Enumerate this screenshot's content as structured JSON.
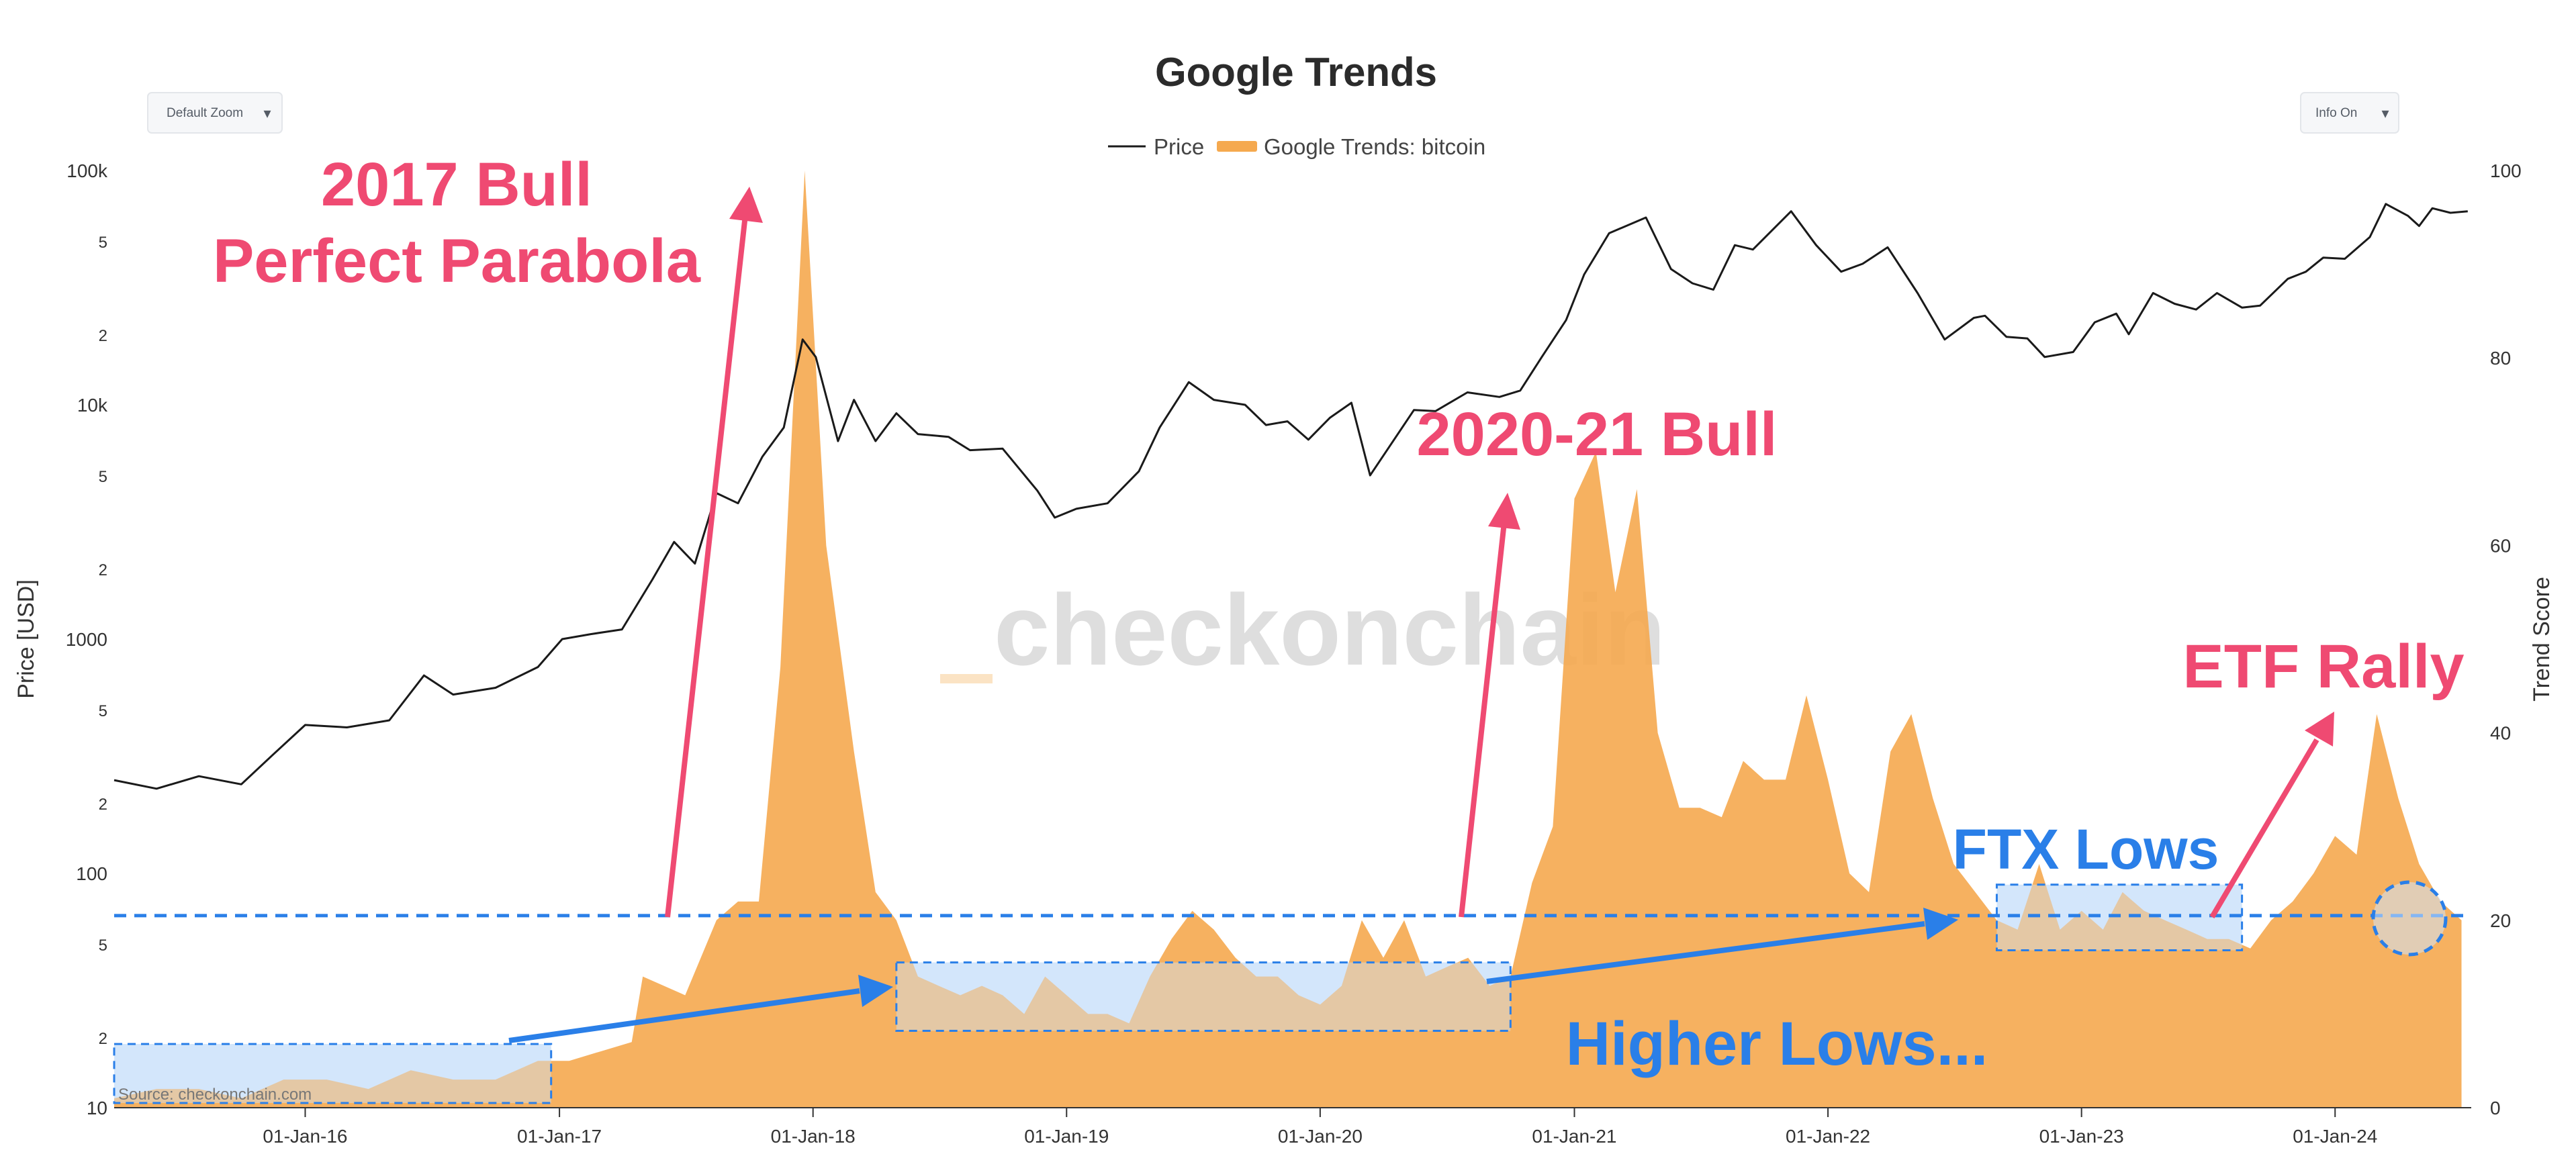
{
  "controls": {
    "zoom_label": "Default Zoom",
    "info_label": "Info On",
    "dropdown_glyph": "▾"
  },
  "colors": {
    "price": "#1a1a1a",
    "trends": "#f5a94f",
    "annotation_red": "#ef4a72",
    "annotation_blue": "#2a7fe8",
    "box_fill": "#d3e6fb"
  },
  "watermark": {
    "dash": "_",
    "text": "checkonchain"
  },
  "source": "Source: checkonchain.com",
  "annotations": {
    "bull_2017_line1": "2017 Bull",
    "bull_2017_line2": "Perfect Parabola",
    "bull_2020": "2020-21 Bull",
    "etf": "ETF Rally",
    "ftx": "FTX Lows",
    "higher_lows": "Higher Lows..."
  },
  "chart_data": {
    "type": "area",
    "title": "Google Trends",
    "legend": [
      {
        "name": "Price",
        "kind": "line"
      },
      {
        "name": "Google Trends: bitcoin",
        "kind": "area"
      }
    ],
    "legend_position": "top-center",
    "grid": false,
    "x_range": [
      "2015-04-01",
      "2024-07-15"
    ],
    "x_ticks": [
      "01-Jan-16",
      "01-Jan-17",
      "01-Jan-18",
      "01-Jan-19",
      "01-Jan-20",
      "01-Jan-21",
      "01-Jan-22",
      "01-Jan-23",
      "01-Jan-24"
    ],
    "y_left": {
      "label": "Price [USD]",
      "scale": "log",
      "range": [
        10,
        100000
      ],
      "ticks": [
        {
          "v": 10,
          "t": "10"
        },
        {
          "v": 20,
          "t": "2"
        },
        {
          "v": 50,
          "t": "5"
        },
        {
          "v": 100,
          "t": "100"
        },
        {
          "v": 200,
          "t": "2"
        },
        {
          "v": 500,
          "t": "5"
        },
        {
          "v": 1000,
          "t": "1000"
        },
        {
          "v": 2000,
          "t": "2"
        },
        {
          "v": 5000,
          "t": "5"
        },
        {
          "v": 10000,
          "t": "10k"
        },
        {
          "v": 20000,
          "t": "2"
        },
        {
          "v": 50000,
          "t": "5"
        },
        {
          "v": 100000,
          "t": "100k"
        }
      ]
    },
    "y_right": {
      "label": "Trend Score",
      "scale": "linear",
      "range": [
        0,
        100
      ],
      "ticks": [
        0,
        20,
        40,
        60,
        80,
        100
      ]
    },
    "reference_line": {
      "y_right": 20.5,
      "style": "dashed"
    },
    "series": [
      {
        "name": "Google Trends: bitcoin",
        "axis": "right",
        "points": [
          [
            "2015-04-01",
            1
          ],
          [
            "2015-06-01",
            2
          ],
          [
            "2015-08-01",
            2
          ],
          [
            "2015-10-01",
            1
          ],
          [
            "2015-12-01",
            3
          ],
          [
            "2016-02-01",
            3
          ],
          [
            "2016-04-01",
            2
          ],
          [
            "2016-06-01",
            4
          ],
          [
            "2016-08-01",
            3
          ],
          [
            "2016-10-01",
            3
          ],
          [
            "2016-12-01",
            5
          ],
          [
            "2017-01-15",
            5
          ],
          [
            "2017-03-01",
            6
          ],
          [
            "2017-04-15",
            7
          ],
          [
            "2017-05-01",
            14
          ],
          [
            "2017-07-01",
            12
          ],
          [
            "2017-08-15",
            20
          ],
          [
            "2017-09-15",
            22
          ],
          [
            "2017-10-15",
            22
          ],
          [
            "2017-11-15",
            47
          ],
          [
            "2017-12-20",
            100
          ],
          [
            "2018-01-20",
            60
          ],
          [
            "2018-03-01",
            38
          ],
          [
            "2018-04-01",
            23
          ],
          [
            "2018-05-01",
            20
          ],
          [
            "2018-06-01",
            14
          ],
          [
            "2018-07-01",
            13
          ],
          [
            "2018-08-01",
            12
          ],
          [
            "2018-09-01",
            13
          ],
          [
            "2018-10-01",
            12
          ],
          [
            "2018-11-01",
            10
          ],
          [
            "2018-12-01",
            14
          ],
          [
            "2019-01-01",
            12
          ],
          [
            "2019-02-01",
            10
          ],
          [
            "2019-03-01",
            10
          ],
          [
            "2019-04-01",
            9
          ],
          [
            "2019-05-01",
            14
          ],
          [
            "2019-06-01",
            18
          ],
          [
            "2019-07-01",
            21
          ],
          [
            "2019-08-01",
            19
          ],
          [
            "2019-09-01",
            16
          ],
          [
            "2019-10-01",
            14
          ],
          [
            "2019-11-01",
            14
          ],
          [
            "2019-12-01",
            12
          ],
          [
            "2020-01-01",
            11
          ],
          [
            "2020-02-01",
            13
          ],
          [
            "2020-03-01",
            20
          ],
          [
            "2020-04-01",
            16
          ],
          [
            "2020-05-01",
            20
          ],
          [
            "2020-06-01",
            14
          ],
          [
            "2020-07-01",
            15
          ],
          [
            "2020-08-01",
            16
          ],
          [
            "2020-09-01",
            13
          ],
          [
            "2020-10-01",
            14
          ],
          [
            "2020-11-01",
            24
          ],
          [
            "2020-12-01",
            30
          ],
          [
            "2021-01-01",
            65
          ],
          [
            "2021-02-01",
            70
          ],
          [
            "2021-03-01",
            55
          ],
          [
            "2021-04-01",
            66
          ],
          [
            "2021-05-01",
            40
          ],
          [
            "2021-06-01",
            32
          ],
          [
            "2021-07-01",
            32
          ],
          [
            "2021-08-01",
            31
          ],
          [
            "2021-09-01",
            37
          ],
          [
            "2021-10-01",
            35
          ],
          [
            "2021-11-01",
            35
          ],
          [
            "2021-12-01",
            44
          ],
          [
            "2022-01-01",
            35
          ],
          [
            "2022-02-01",
            25
          ],
          [
            "2022-03-01",
            23
          ],
          [
            "2022-04-01",
            38
          ],
          [
            "2022-05-01",
            42
          ],
          [
            "2022-06-01",
            33
          ],
          [
            "2022-07-01",
            26
          ],
          [
            "2022-08-01",
            23
          ],
          [
            "2022-09-01",
            20
          ],
          [
            "2022-10-01",
            19
          ],
          [
            "2022-11-01",
            26
          ],
          [
            "2022-12-01",
            19
          ],
          [
            "2023-01-01",
            21
          ],
          [
            "2023-02-01",
            19
          ],
          [
            "2023-03-01",
            23
          ],
          [
            "2023-04-01",
            21
          ],
          [
            "2023-05-01",
            20
          ],
          [
            "2023-06-01",
            19
          ],
          [
            "2023-07-01",
            18
          ],
          [
            "2023-08-01",
            18
          ],
          [
            "2023-09-01",
            17
          ],
          [
            "2023-10-01",
            20
          ],
          [
            "2023-11-01",
            22
          ],
          [
            "2023-12-01",
            25
          ],
          [
            "2024-01-01",
            29
          ],
          [
            "2024-02-01",
            27
          ],
          [
            "2024-03-01",
            42
          ],
          [
            "2024-04-01",
            33
          ],
          [
            "2024-05-01",
            26
          ],
          [
            "2024-06-01",
            22
          ],
          [
            "2024-07-01",
            20
          ]
        ]
      },
      {
        "name": "Price",
        "axis": "left",
        "points": [
          [
            "2015-04-01",
            250
          ],
          [
            "2015-06-01",
            230
          ],
          [
            "2015-08-01",
            260
          ],
          [
            "2015-10-01",
            240
          ],
          [
            "2015-11-15",
            320
          ],
          [
            "2016-01-01",
            430
          ],
          [
            "2016-03-01",
            420
          ],
          [
            "2016-05-01",
            450
          ],
          [
            "2016-06-20",
            700
          ],
          [
            "2016-08-01",
            580
          ],
          [
            "2016-10-01",
            620
          ],
          [
            "2016-12-01",
            760
          ],
          [
            "2017-01-05",
            1000
          ],
          [
            "2017-02-15",
            1050
          ],
          [
            "2017-04-01",
            1100
          ],
          [
            "2017-05-15",
            1800
          ],
          [
            "2017-06-15",
            2600
          ],
          [
            "2017-07-15",
            2100
          ],
          [
            "2017-08-15",
            4200
          ],
          [
            "2017-09-15",
            3800
          ],
          [
            "2017-10-20",
            6000
          ],
          [
            "2017-11-20",
            8000
          ],
          [
            "2017-12-17",
            19000
          ],
          [
            "2018-01-05",
            16000
          ],
          [
            "2018-02-06",
            7000
          ],
          [
            "2018-03-01",
            10500
          ],
          [
            "2018-04-01",
            7000
          ],
          [
            "2018-05-01",
            9200
          ],
          [
            "2018-06-01",
            7500
          ],
          [
            "2018-07-15",
            7300
          ],
          [
            "2018-08-15",
            6400
          ],
          [
            "2018-10-01",
            6500
          ],
          [
            "2018-11-20",
            4300
          ],
          [
            "2018-12-15",
            3300
          ],
          [
            "2019-01-15",
            3600
          ],
          [
            "2019-03-01",
            3800
          ],
          [
            "2019-04-15",
            5200
          ],
          [
            "2019-05-15",
            8000
          ],
          [
            "2019-06-26",
            12500
          ],
          [
            "2019-08-01",
            10500
          ],
          [
            "2019-09-15",
            10000
          ],
          [
            "2019-10-15",
            8200
          ],
          [
            "2019-11-15",
            8500
          ],
          [
            "2019-12-15",
            7100
          ],
          [
            "2020-01-15",
            8800
          ],
          [
            "2020-02-15",
            10200
          ],
          [
            "2020-03-13",
            5000
          ],
          [
            "2020-04-15",
            7000
          ],
          [
            "2020-05-15",
            9500
          ],
          [
            "2020-06-15",
            9400
          ],
          [
            "2020-07-31",
            11300
          ],
          [
            "2020-09-15",
            10800
          ],
          [
            "2020-10-15",
            11500
          ],
          [
            "2020-11-15",
            16000
          ],
          [
            "2020-12-20",
            23000
          ],
          [
            "2021-01-15",
            36000
          ],
          [
            "2021-02-20",
            54000
          ],
          [
            "2021-04-14",
            63000
          ],
          [
            "2021-05-20",
            38000
          ],
          [
            "2021-06-20",
            33000
          ],
          [
            "2021-07-20",
            31000
          ],
          [
            "2021-08-20",
            48000
          ],
          [
            "2021-09-15",
            46000
          ],
          [
            "2021-11-09",
            67000
          ],
          [
            "2021-12-15",
            48000
          ],
          [
            "2022-01-20",
            37000
          ],
          [
            "2022-02-20",
            40000
          ],
          [
            "2022-03-28",
            47000
          ],
          [
            "2022-05-10",
            30000
          ],
          [
            "2022-06-18",
            19000
          ],
          [
            "2022-07-30",
            23500
          ],
          [
            "2022-08-15",
            24000
          ],
          [
            "2022-09-15",
            19500
          ],
          [
            "2022-10-15",
            19200
          ],
          [
            "2022-11-09",
            16000
          ],
          [
            "2022-12-20",
            16800
          ],
          [
            "2023-01-20",
            22500
          ],
          [
            "2023-02-20",
            24500
          ],
          [
            "2023-03-10",
            20000
          ],
          [
            "2023-04-14",
            30000
          ],
          [
            "2023-05-15",
            27000
          ],
          [
            "2023-06-15",
            25500
          ],
          [
            "2023-07-15",
            30000
          ],
          [
            "2023-08-20",
            26000
          ],
          [
            "2023-09-15",
            26500
          ],
          [
            "2023-10-25",
            34500
          ],
          [
            "2023-11-20",
            37000
          ],
          [
            "2023-12-15",
            42500
          ],
          [
            "2024-01-15",
            42000
          ],
          [
            "2024-02-20",
            52000
          ],
          [
            "2024-03-14",
            72000
          ],
          [
            "2024-04-15",
            64000
          ],
          [
            "2024-05-01",
            58000
          ],
          [
            "2024-05-20",
            69000
          ],
          [
            "2024-06-15",
            66000
          ],
          [
            "2024-07-10",
            67000
          ]
        ]
      }
    ]
  }
}
